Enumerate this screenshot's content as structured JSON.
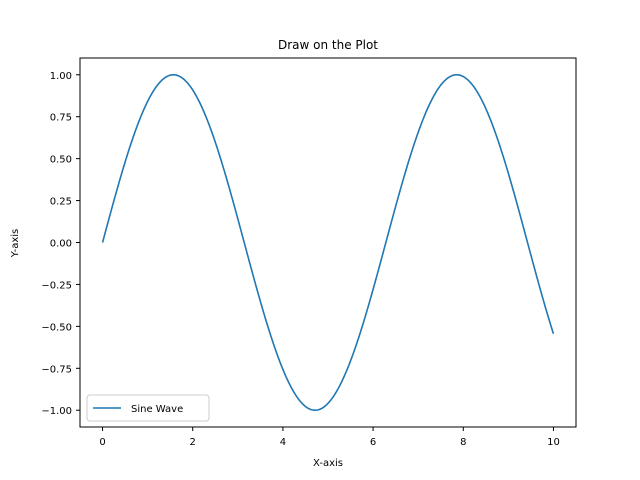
{
  "chart_data": {
    "type": "line",
    "title": "Draw on the Plot",
    "xlabel": "X-axis",
    "ylabel": "Y-axis",
    "xlim": [
      -0.5,
      10.5
    ],
    "ylim": [
      -1.1,
      1.1
    ],
    "grid": false,
    "legend_position": "lower-left",
    "x_ticks": [
      0,
      2,
      4,
      6,
      8,
      10
    ],
    "x_tick_labels": [
      "0",
      "2",
      "4",
      "6",
      "8",
      "10"
    ],
    "y_ticks": [
      1.0,
      0.75,
      0.5,
      0.25,
      0.0,
      -0.25,
      -0.5,
      -0.75,
      -1.0
    ],
    "y_tick_labels": [
      "1.00",
      "0.75",
      "0.50",
      "0.25",
      "0.00",
      "−0.25",
      "−0.50",
      "−0.75",
      "−1.00"
    ],
    "series": [
      {
        "name": "Sine Wave",
        "color": "#1f77b4",
        "function": "sin(x)",
        "x_range": [
          0,
          10
        ],
        "x": [
          0,
          1,
          1.5708,
          2,
          3,
          3.1416,
          4,
          4.7124,
          5,
          6,
          7,
          7.854,
          8,
          9,
          10
        ],
        "y": [
          0,
          0.841,
          1.0,
          0.909,
          0.141,
          0.0,
          -0.757,
          -1.0,
          -0.959,
          -0.279,
          0.657,
          1.0,
          0.989,
          0.412,
          -0.544
        ]
      }
    ]
  }
}
